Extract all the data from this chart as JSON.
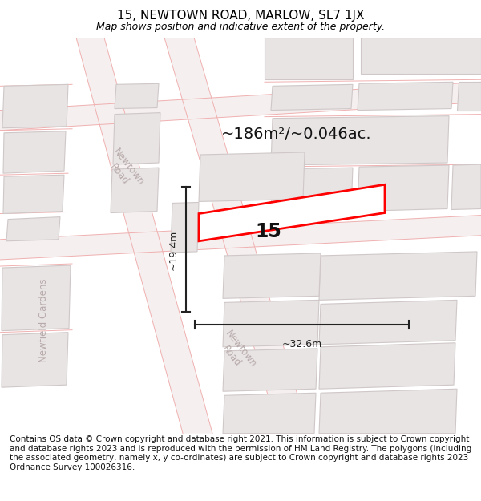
{
  "title": "15, NEWTOWN ROAD, MARLOW, SL7 1JX",
  "subtitle": "Map shows position and indicative extent of the property.",
  "footer": "Contains OS data © Crown copyright and database right 2021. This information is subject to Crown copyright and database rights 2023 and is reproduced with the permission of HM Land Registry. The polygons (including the associated geometry, namely x, y co-ordinates) are subject to Crown copyright and database rights 2023 Ordnance Survey 100026316.",
  "area_label": "~186m²/~0.046ac.",
  "width_label": "~32.6m",
  "height_label": "~19.4m",
  "number_label": "15",
  "map_bg": "#f7f2f2",
  "building_fill": "#e8e4e4",
  "building_edge": "#d0c8c8",
  "road_line_color": "#f0b0b0",
  "highlight_fill": "#ffffff",
  "highlight_edge": "#ff0000",
  "road_label_color": "#b8aaaa",
  "dimension_color": "#222222",
  "title_fontsize": 11,
  "subtitle_fontsize": 9,
  "footer_fontsize": 7.5,
  "area_fontsize": 14
}
